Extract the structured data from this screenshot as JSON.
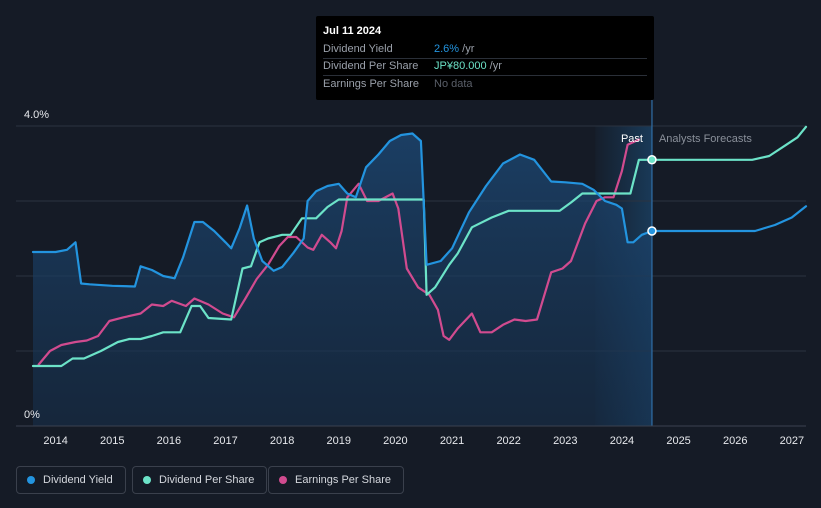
{
  "tooltip": {
    "date": "Jul 11 2024",
    "rows": [
      {
        "label": "Dividend Yield",
        "value": "2.6%",
        "suffix": " /yr",
        "color": "#2394df"
      },
      {
        "label": "Dividend Per Share",
        "value": "JP¥80.000",
        "suffix": " /yr",
        "color": "#6ce3c8"
      },
      {
        "label": "Earnings Per Share",
        "value": "No data",
        "suffix": "",
        "color": "#5a5f69"
      }
    ]
  },
  "legend": [
    {
      "label": "Dividend Yield",
      "color": "#2394df"
    },
    {
      "label": "Dividend Per Share",
      "color": "#6ce3c8"
    },
    {
      "label": "Earnings Per Share",
      "color": "#d14b8f"
    }
  ],
  "chart_data": {
    "type": "line",
    "y_tick_labels": [
      "4.0%",
      "0%"
    ],
    "ylim": [
      0,
      4.0
    ],
    "xlim": [
      2013.3,
      2027.25
    ],
    "x_ticks": [
      2014,
      2015,
      2016,
      2017,
      2018,
      2019,
      2020,
      2021,
      2022,
      2023,
      2024,
      2025,
      2026,
      2027
    ],
    "grid": true,
    "past_label": "Past",
    "forecast_label": "Analysts Forecasts",
    "forecast_start": 2024.53,
    "past_shade_start": 2023.53,
    "marker_x": 2024.53,
    "series": [
      {
        "name": "Dividend Yield",
        "unit": "%",
        "color": "#2394df",
        "points": [
          [
            2013.6,
            2.32
          ],
          [
            2014.0,
            2.32
          ],
          [
            2014.2,
            2.35
          ],
          [
            2014.35,
            2.45
          ],
          [
            2014.45,
            1.9
          ],
          [
            2014.6,
            1.89
          ],
          [
            2015.0,
            1.87
          ],
          [
            2015.4,
            1.86
          ],
          [
            2015.5,
            2.13
          ],
          [
            2015.7,
            2.08
          ],
          [
            2015.9,
            2.0
          ],
          [
            2016.1,
            1.97
          ],
          [
            2016.25,
            2.25
          ],
          [
            2016.45,
            2.72
          ],
          [
            2016.6,
            2.72
          ],
          [
            2016.8,
            2.6
          ],
          [
            2017.0,
            2.45
          ],
          [
            2017.1,
            2.37
          ],
          [
            2017.25,
            2.64
          ],
          [
            2017.38,
            2.94
          ],
          [
            2017.5,
            2.5
          ],
          [
            2017.65,
            2.2
          ],
          [
            2017.85,
            2.07
          ],
          [
            2018.0,
            2.12
          ],
          [
            2018.2,
            2.31
          ],
          [
            2018.38,
            2.5
          ],
          [
            2018.45,
            3.0
          ],
          [
            2018.6,
            3.13
          ],
          [
            2018.8,
            3.2
          ],
          [
            2019.0,
            3.23
          ],
          [
            2019.15,
            3.1
          ],
          [
            2019.3,
            3.05
          ],
          [
            2019.48,
            3.45
          ],
          [
            2019.7,
            3.62
          ],
          [
            2019.9,
            3.8
          ],
          [
            2020.1,
            3.88
          ],
          [
            2020.3,
            3.9
          ],
          [
            2020.45,
            3.8
          ],
          [
            2020.55,
            2.15
          ],
          [
            2020.8,
            2.2
          ],
          [
            2021.0,
            2.37
          ],
          [
            2021.1,
            2.53
          ],
          [
            2021.3,
            2.85
          ],
          [
            2021.6,
            3.2
          ],
          [
            2021.9,
            3.5
          ],
          [
            2022.2,
            3.62
          ],
          [
            2022.45,
            3.55
          ],
          [
            2022.75,
            3.26
          ],
          [
            2023.0,
            3.25
          ],
          [
            2023.3,
            3.23
          ],
          [
            2023.5,
            3.15
          ],
          [
            2023.7,
            3.0
          ],
          [
            2023.9,
            2.95
          ],
          [
            2024.0,
            2.9
          ],
          [
            2024.1,
            2.45
          ],
          [
            2024.2,
            2.45
          ],
          [
            2024.35,
            2.55
          ],
          [
            2024.53,
            2.6
          ],
          [
            2025.0,
            2.6
          ],
          [
            2026.0,
            2.6
          ],
          [
            2026.35,
            2.6
          ],
          [
            2026.7,
            2.68
          ],
          [
            2027.0,
            2.78
          ],
          [
            2027.25,
            2.93
          ]
        ]
      },
      {
        "name": "Dividend Per Share",
        "unit": "JP¥",
        "color": "#6ce3c8",
        "points": [
          [
            2013.6,
            0.8
          ],
          [
            2014.1,
            0.8
          ],
          [
            2014.3,
            0.9
          ],
          [
            2014.5,
            0.9
          ],
          [
            2014.8,
            1.0
          ],
          [
            2015.1,
            1.12
          ],
          [
            2015.3,
            1.16
          ],
          [
            2015.5,
            1.16
          ],
          [
            2015.7,
            1.2
          ],
          [
            2015.9,
            1.25
          ],
          [
            2016.2,
            1.25
          ],
          [
            2016.4,
            1.6
          ],
          [
            2016.55,
            1.6
          ],
          [
            2016.7,
            1.44
          ],
          [
            2017.1,
            1.42
          ],
          [
            2017.3,
            2.1
          ],
          [
            2017.45,
            2.13
          ],
          [
            2017.6,
            2.45
          ],
          [
            2017.75,
            2.5
          ],
          [
            2018.0,
            2.55
          ],
          [
            2018.15,
            2.55
          ],
          [
            2018.35,
            2.77
          ],
          [
            2018.6,
            2.77
          ],
          [
            2018.8,
            2.92
          ],
          [
            2019.0,
            3.02
          ],
          [
            2019.5,
            3.02
          ],
          [
            2020.0,
            3.02
          ],
          [
            2020.5,
            3.02
          ],
          [
            2020.55,
            1.75
          ],
          [
            2020.7,
            1.85
          ],
          [
            2020.95,
            2.15
          ],
          [
            2021.1,
            2.3
          ],
          [
            2021.35,
            2.65
          ],
          [
            2021.7,
            2.78
          ],
          [
            2022.0,
            2.87
          ],
          [
            2022.5,
            2.87
          ],
          [
            2022.9,
            2.87
          ],
          [
            2023.1,
            2.98
          ],
          [
            2023.3,
            3.1
          ],
          [
            2023.5,
            3.1
          ],
          [
            2024.0,
            3.1
          ],
          [
            2024.15,
            3.1
          ],
          [
            2024.3,
            3.55
          ],
          [
            2024.53,
            3.55
          ],
          [
            2025.0,
            3.55
          ],
          [
            2025.8,
            3.55
          ],
          [
            2026.3,
            3.55
          ],
          [
            2026.6,
            3.6
          ],
          [
            2026.9,
            3.75
          ],
          [
            2027.1,
            3.85
          ],
          [
            2027.25,
            3.99
          ]
        ]
      },
      {
        "name": "Earnings Per Share",
        "unit": "JP¥",
        "color": "#d14b8f",
        "points": [
          [
            2013.7,
            0.82
          ],
          [
            2013.9,
            1.0
          ],
          [
            2014.1,
            1.08
          ],
          [
            2014.35,
            1.12
          ],
          [
            2014.55,
            1.14
          ],
          [
            2014.75,
            1.2
          ],
          [
            2014.95,
            1.4
          ],
          [
            2015.2,
            1.45
          ],
          [
            2015.5,
            1.5
          ],
          [
            2015.7,
            1.62
          ],
          [
            2015.9,
            1.6
          ],
          [
            2016.05,
            1.67
          ],
          [
            2016.3,
            1.6
          ],
          [
            2016.45,
            1.7
          ],
          [
            2016.7,
            1.62
          ],
          [
            2016.95,
            1.5
          ],
          [
            2017.15,
            1.45
          ],
          [
            2017.35,
            1.7
          ],
          [
            2017.55,
            1.96
          ],
          [
            2017.75,
            2.15
          ],
          [
            2017.95,
            2.4
          ],
          [
            2018.1,
            2.52
          ],
          [
            2018.25,
            2.52
          ],
          [
            2018.45,
            2.38
          ],
          [
            2018.55,
            2.35
          ],
          [
            2018.7,
            2.55
          ],
          [
            2018.85,
            2.45
          ],
          [
            2018.95,
            2.37
          ],
          [
            2019.05,
            2.6
          ],
          [
            2019.15,
            3.05
          ],
          [
            2019.35,
            3.23
          ],
          [
            2019.5,
            3.0
          ],
          [
            2019.7,
            3.0
          ],
          [
            2019.95,
            3.1
          ],
          [
            2020.05,
            2.9
          ],
          [
            2020.2,
            2.1
          ],
          [
            2020.4,
            1.85
          ],
          [
            2020.6,
            1.75
          ],
          [
            2020.75,
            1.55
          ],
          [
            2020.85,
            1.2
          ],
          [
            2020.95,
            1.15
          ],
          [
            2021.1,
            1.3
          ],
          [
            2021.35,
            1.5
          ],
          [
            2021.5,
            1.25
          ],
          [
            2021.7,
            1.25
          ],
          [
            2021.9,
            1.35
          ],
          [
            2022.1,
            1.42
          ],
          [
            2022.3,
            1.4
          ],
          [
            2022.5,
            1.42
          ],
          [
            2022.75,
            2.05
          ],
          [
            2022.95,
            2.1
          ],
          [
            2023.1,
            2.2
          ],
          [
            2023.35,
            2.7
          ],
          [
            2023.55,
            3.0
          ],
          [
            2023.7,
            3.05
          ],
          [
            2023.85,
            3.05
          ],
          [
            2024.0,
            3.4
          ],
          [
            2024.1,
            3.75
          ],
          [
            2024.3,
            3.82
          ]
        ]
      }
    ]
  }
}
